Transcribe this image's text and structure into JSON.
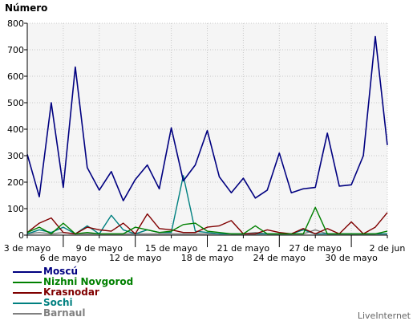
{
  "chart_data": {
    "type": "line",
    "ylabel": "Número",
    "ylim": [
      0,
      800
    ],
    "yticks": [
      0,
      100,
      200,
      300,
      400,
      500,
      600,
      700,
      800
    ],
    "grid": true,
    "legend_placement": "bottom-left",
    "x_dates": [
      "3 may",
      "4 may",
      "5 may",
      "6 may",
      "7 may",
      "8 may",
      "9 may",
      "10 may",
      "11 may",
      "12 may",
      "13 may",
      "14 may",
      "15 may",
      "16 may",
      "17 may",
      "18 may",
      "19 may",
      "20 may",
      "21 may",
      "22 may",
      "23 may",
      "24 may",
      "25 may",
      "26 may",
      "27 may",
      "28 may",
      "29 may",
      "30 may",
      "31 may",
      "1 jun",
      "2 jun"
    ],
    "xticks_row1": [
      {
        "i": 0,
        "label": "3 de mayo"
      },
      {
        "i": 6,
        "label": "9 de mayo"
      },
      {
        "i": 12,
        "label": "15 de mayo"
      },
      {
        "i": 18,
        "label": "21 de mayo"
      },
      {
        "i": 24,
        "label": "27 de mayo"
      },
      {
        "i": 30,
        "label": "2 de jun"
      }
    ],
    "xticks_row2": [
      {
        "i": 3,
        "label": "6 de mayo"
      },
      {
        "i": 9,
        "label": "12 de mayo"
      },
      {
        "i": 15,
        "label": "18 de mayo"
      },
      {
        "i": 21,
        "label": "24 de mayo"
      },
      {
        "i": 27,
        "label": "30 de mayo"
      }
    ],
    "series": [
      {
        "name": "Moscú",
        "color": "#000080",
        "values": [
          305,
          145,
          500,
          180,
          635,
          255,
          170,
          240,
          130,
          210,
          265,
          175,
          405,
          205,
          265,
          395,
          220,
          160,
          215,
          140,
          170,
          310,
          160,
          175,
          180,
          385,
          185,
          190,
          300,
          750,
          340
        ]
      },
      {
        "name": "Nizhni Novgorod",
        "color": "#008000",
        "values": [
          10,
          30,
          5,
          45,
          5,
          10,
          5,
          5,
          5,
          30,
          20,
          10,
          15,
          40,
          45,
          15,
          10,
          5,
          5,
          35,
          5,
          5,
          5,
          5,
          105,
          5,
          5,
          5,
          5,
          5,
          15
        ]
      },
      {
        "name": "Krasnodar",
        "color": "#800000",
        "values": [
          10,
          45,
          65,
          10,
          5,
          30,
          20,
          15,
          45,
          5,
          80,
          25,
          20,
          10,
          10,
          30,
          35,
          55,
          5,
          5,
          20,
          10,
          5,
          25,
          5,
          25,
          5,
          50,
          5,
          30,
          85
        ]
      },
      {
        "name": "Sochi",
        "color": "#008080",
        "values": [
          5,
          20,
          10,
          30,
          5,
          35,
          5,
          75,
          20,
          5,
          20,
          10,
          10,
          225,
          15,
          10,
          5,
          5,
          5,
          5,
          5,
          5,
          5,
          20,
          5,
          5,
          5,
          5,
          5,
          5,
          5
        ]
      },
      {
        "name": "Barnaul",
        "color": "#808080",
        "values": [
          5,
          10,
          5,
          10,
          5,
          5,
          5,
          5,
          5,
          5,
          5,
          5,
          5,
          5,
          5,
          5,
          5,
          5,
          5,
          10,
          5,
          5,
          5,
          5,
          20,
          5,
          5,
          5,
          5,
          5,
          5
        ]
      }
    ]
  },
  "brand": "LiveInternet"
}
